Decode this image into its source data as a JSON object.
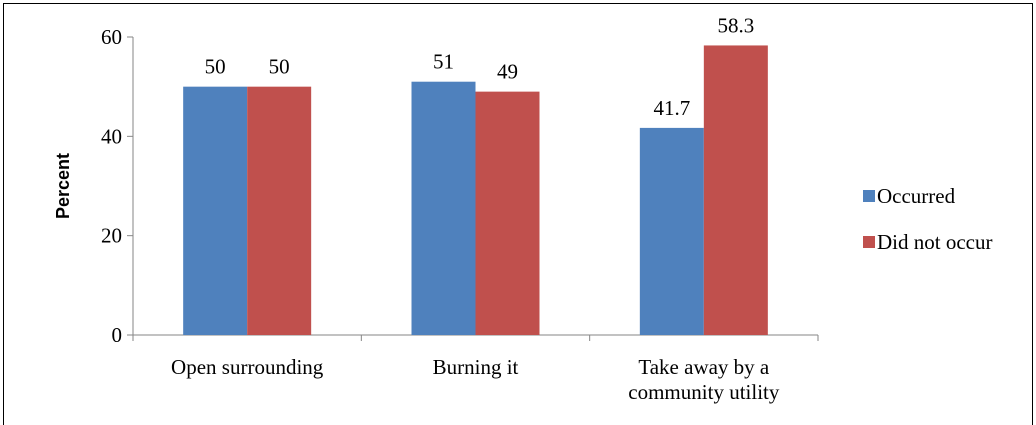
{
  "chart_data": {
    "type": "bar",
    "title": "",
    "xlabel": "",
    "ylabel": "Percent",
    "ylim": [
      0,
      60
    ],
    "yticks": [
      0,
      20,
      40,
      60
    ],
    "grid": false,
    "legend_position": "right",
    "categories": [
      [
        "Open surrounding"
      ],
      [
        "Burning it"
      ],
      [
        "Take away by a",
        "community utility"
      ]
    ],
    "series": [
      {
        "name": "Occurred",
        "color": "#4F81BD",
        "values": [
          50,
          51,
          41.7
        ]
      },
      {
        "name": "Did not occur",
        "color": "#C0504D",
        "values": [
          50,
          49,
          58.3
        ]
      }
    ]
  }
}
